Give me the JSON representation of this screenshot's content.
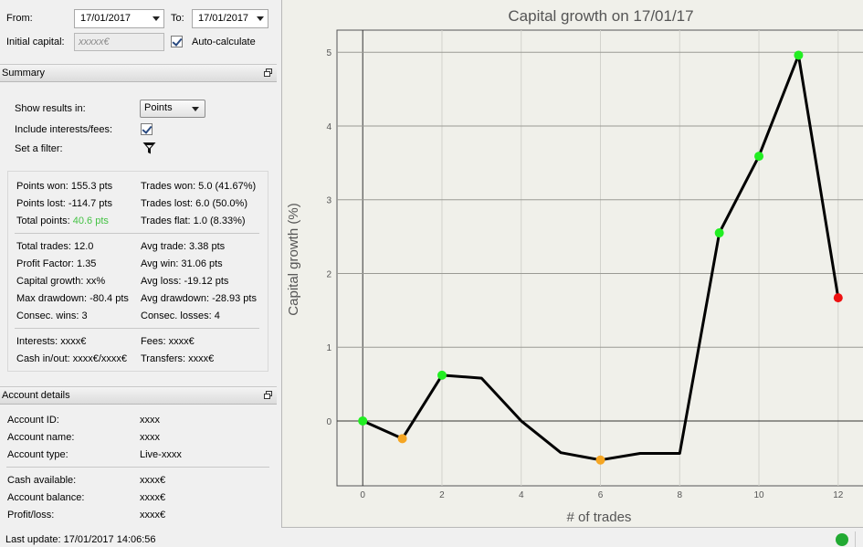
{
  "filters": {
    "from_label": "From:",
    "from_value": "17/01/2017",
    "to_label": "To:",
    "to_value": "17/01/2017",
    "initial_capital_label": "Initial capital:",
    "initial_capital_placeholder": "xxxxx€",
    "auto_calculate_label": "Auto-calculate",
    "auto_calculate_checked": true
  },
  "summary": {
    "header": "Summary",
    "show_results_label": "Show results in:",
    "show_results_value": "Points",
    "include_interests_label": "Include interests/fees:",
    "include_interests_checked": true,
    "filter_label": "Set a filter:",
    "filter_icon": "funnel-icon",
    "stats": {
      "points_won": "Points won: 155.3 pts",
      "trades_won": "Trades won: 5.0 (41.67%)",
      "points_lost": "Points lost: -114.7 pts",
      "trades_lost": "Trades lost: 6.0 (50.0%)",
      "total_points_label": "Total points:",
      "total_points_value": "40.6 pts",
      "trades_flat": "Trades flat: 1.0 (8.33%)",
      "total_trades": "Total trades: 12.0",
      "avg_trade": "Avg trade: 3.38 pts",
      "profit_factor": "Profit Factor: 1.35",
      "avg_win": "Avg win: 31.06 pts",
      "capital_growth": "Capital growth: xx%",
      "avg_loss": "Avg loss: -19.12 pts",
      "max_drawdown": "Max drawdown: -80.4 pts",
      "avg_drawdown": "Avg drawdown: -28.93 pts",
      "consec_wins": "Consec. wins: 3",
      "consec_losses": "Consec. losses: 4",
      "interests": "Interests: xxxx€",
      "fees": "Fees: xxxx€",
      "cash_in_out": "Cash in/out: xxxx€/xxxx€",
      "transfers": "Transfers: xxxx€"
    },
    "total_points_color": "#44c244"
  },
  "account": {
    "header": "Account details",
    "rows": [
      {
        "label": "Account ID:",
        "value": "xxxx"
      },
      {
        "label": "Account name:",
        "value": "xxxx"
      },
      {
        "label": "Account type:",
        "value": "Live-xxxx"
      },
      {
        "label": "Cash available:",
        "value": "xxxx€"
      },
      {
        "label": "Account balance:",
        "value": "xxxx€"
      },
      {
        "label": "Profit/loss:",
        "value": "xxxx€"
      }
    ]
  },
  "footer": {
    "last_update": "Last update: 17/01/2017 14:06:56",
    "status_color": "#22aa33"
  },
  "chart_data": {
    "type": "line",
    "title": "Capital growth on 17/01/17",
    "xlabel": "# of trades",
    "ylabel": "Capital growth (%)",
    "xlim": [
      -0.65,
      12.65
    ],
    "ylim": [
      -0.88,
      5.3
    ],
    "x_ticks": [
      0,
      2,
      4,
      6,
      8,
      10,
      12
    ],
    "y_ticks": [
      0,
      1,
      2,
      3,
      4,
      5
    ],
    "grid": true,
    "line_color": "#000000",
    "points": [
      {
        "x": 0,
        "y": 0.0,
        "marker": "win"
      },
      {
        "x": 1,
        "y": -0.24,
        "marker": "flat"
      },
      {
        "x": 2,
        "y": 0.62,
        "marker": "win"
      },
      {
        "x": 3,
        "y": 0.58,
        "marker": null
      },
      {
        "x": 4,
        "y": 0.0,
        "marker": null
      },
      {
        "x": 5,
        "y": -0.43,
        "marker": null
      },
      {
        "x": 6,
        "y": -0.53,
        "marker": "flat"
      },
      {
        "x": 7,
        "y": -0.44,
        "marker": null
      },
      {
        "x": 8,
        "y": -0.44,
        "marker": null
      },
      {
        "x": 9,
        "y": 2.55,
        "marker": "win"
      },
      {
        "x": 10,
        "y": 3.59,
        "marker": "win"
      },
      {
        "x": 11,
        "y": 4.96,
        "marker": "win"
      },
      {
        "x": 12,
        "y": 1.67,
        "marker": "loss"
      }
    ],
    "marker_colors": {
      "win": "#22ee22",
      "flat": "#f5a623",
      "loss": "#ee1111"
    }
  }
}
